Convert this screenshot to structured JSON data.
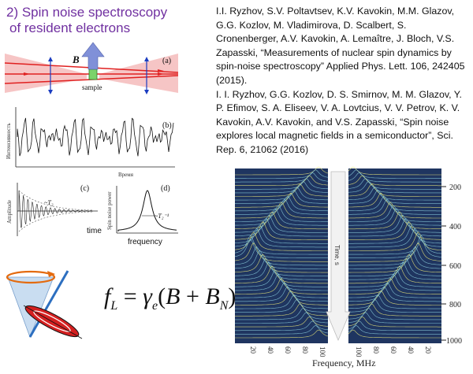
{
  "slide": {
    "title_line1": "2) Spin noise spectroscopy",
    "title_line2": "of resident electrons"
  },
  "references": [
    "I.I. Ryzhov, S.V. Poltavtsev, K.V. Kavokin, M.M. Glazov, G.G. Kozlov, M. Vladimirova, D. Scalbert, S. Cronenberger, A.V. Kavokin, A. Lemaître, J. Bloch, V.S. Zapasski, “Measurements of nuclear spin dynamics by spin-noise spectroscopy” Applied Phys. Lett. 106, 242405 (2015).",
    "I. I. Ryzhov, G.G. Kozlov, D. S. Smirnov, M. M. Glazov, Y. P. Efimov, S. A. Eliseev, V. A. Lovtcius, V. V. Petrov, K. V. Kavokin, A.V. Kavokin, and V.S. Zapasski, “Spin noise explores local magnetic fields in a semiconductor”, Sci. Rep. 6, 21062 (2016)"
  ],
  "schematic": {
    "panel_a": "(a)",
    "panel_b": "(b)",
    "panel_c": "(c)",
    "panel_d": "(d)",
    "field_label": "B",
    "sample_label": "sample",
    "b_ylabel": "Интенсивность",
    "b_xlabel": "Время",
    "c_ylabel": "Amplitude",
    "c_xlabel": "time",
    "c_marker": "~T₂",
    "d_ylabel": "Spin noise power",
    "d_xlabel": "frequency",
    "d_marker": "~T₂⁻¹"
  },
  "formula": {
    "lhs": "f",
    "lhs_sub": "L",
    "eq": "=",
    "gamma": "γ",
    "gamma_sub": "e",
    "open": "(",
    "b": "B",
    "plus": "+",
    "bn": "B",
    "bn_sub": "N",
    "close": ")"
  },
  "spectrogram": {
    "xlabel": "Frequency, MHz",
    "time_label": "Time, s",
    "left_ticks": [
      "20",
      "40",
      "60",
      "80",
      "100"
    ],
    "right_ticks": [
      "100",
      "80",
      "60",
      "40",
      "20"
    ],
    "y_ticks": [
      "200",
      "400",
      "600",
      "800",
      "1000"
    ],
    "colors": {
      "background": "#1f3560",
      "trace": "#8ed3e0",
      "peak": "#f3f07a"
    }
  }
}
